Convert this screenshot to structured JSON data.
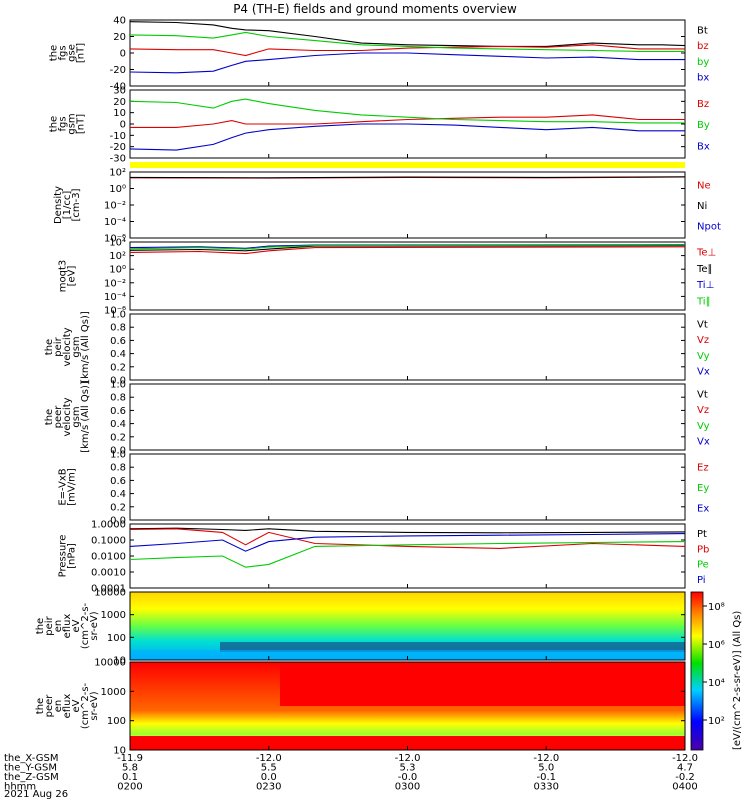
{
  "title": "P4 (TH-E) fields and ground moments overview",
  "colors": {
    "black": "#000000",
    "red": "#dd0000",
    "green": "#00cc00",
    "blue": "#0000cc",
    "yellow": "#ffff00"
  },
  "chart_data": [
    {
      "id": "fgs_gse",
      "type": "line",
      "ylabel_lines": [
        "the",
        "fgs",
        "gse",
        "[nT]"
      ],
      "ylim": [
        -40,
        40
      ],
      "yticks": [
        "40",
        "20",
        "0",
        "-20",
        "-40"
      ],
      "legend": [
        {
          "name": "Bt",
          "color": "black"
        },
        {
          "name": "bz",
          "color": "red"
        },
        {
          "name": "by",
          "color": "green"
        },
        {
          "name": "bx",
          "color": "blue"
        }
      ],
      "series": [
        {
          "name": "Bt",
          "color": "black",
          "x": [
            0,
            10,
            18,
            22,
            25,
            30,
            40,
            50,
            60,
            70,
            80,
            90,
            100,
            110,
            115,
            120
          ],
          "values": [
            38,
            37,
            34,
            30,
            28,
            27,
            20,
            12,
            10,
            9,
            8,
            8,
            12,
            10,
            10,
            9
          ]
        },
        {
          "name": "bz",
          "color": "red",
          "x": [
            0,
            10,
            18,
            22,
            25,
            30,
            40,
            50,
            60,
            70,
            80,
            90,
            100,
            110,
            115,
            120
          ],
          "values": [
            5,
            4,
            4,
            0,
            -3,
            5,
            3,
            3,
            6,
            7,
            8,
            7,
            10,
            5,
            5,
            5
          ]
        },
        {
          "name": "by",
          "color": "green",
          "x": [
            0,
            10,
            18,
            22,
            25,
            30,
            40,
            50,
            60,
            70,
            80,
            90,
            100,
            110,
            115,
            120
          ],
          "values": [
            22,
            21,
            18,
            22,
            25,
            20,
            15,
            10,
            8,
            6,
            5,
            4,
            3,
            2,
            2,
            2
          ]
        },
        {
          "name": "bx",
          "color": "blue",
          "x": [
            0,
            10,
            18,
            22,
            25,
            30,
            40,
            50,
            60,
            70,
            80,
            90,
            100,
            110,
            115,
            120
          ],
          "values": [
            -23,
            -24,
            -22,
            -15,
            -10,
            -8,
            -3,
            0,
            0,
            -2,
            -4,
            -6,
            -5,
            -8,
            -8,
            -8
          ]
        }
      ]
    },
    {
      "id": "fgs_gsm",
      "type": "line",
      "ylabel_lines": [
        "the",
        "fgs",
        "gsm",
        "[nT]"
      ],
      "ylim": [
        -30,
        30
      ],
      "yticks": [
        "30",
        "20",
        "10",
        "0",
        "-10",
        "-20",
        "-30"
      ],
      "legend": [
        {
          "name": "Bz",
          "color": "red"
        },
        {
          "name": "By",
          "color": "green"
        },
        {
          "name": "Bx",
          "color": "blue"
        }
      ],
      "series": [
        {
          "name": "Bz",
          "color": "red",
          "x": [
            0,
            10,
            18,
            22,
            25,
            30,
            40,
            50,
            60,
            70,
            80,
            90,
            100,
            110,
            120
          ],
          "values": [
            -3,
            -3,
            0,
            3,
            0,
            0,
            0,
            2,
            4,
            5,
            6,
            6,
            8,
            4,
            4
          ]
        },
        {
          "name": "By",
          "color": "green",
          "x": [
            0,
            10,
            18,
            22,
            25,
            30,
            40,
            50,
            60,
            70,
            80,
            90,
            100,
            110,
            120
          ],
          "values": [
            20,
            19,
            14,
            20,
            22,
            18,
            12,
            8,
            6,
            4,
            3,
            2,
            2,
            1,
            1
          ]
        },
        {
          "name": "Bx",
          "color": "blue",
          "x": [
            0,
            10,
            18,
            22,
            25,
            30,
            40,
            50,
            60,
            70,
            80,
            90,
            100,
            110,
            120
          ],
          "values": [
            -22,
            -23,
            -18,
            -12,
            -8,
            -5,
            -2,
            0,
            0,
            -1,
            -3,
            -5,
            -3,
            -6,
            -6
          ]
        }
      ]
    },
    {
      "id": "density",
      "type": "line",
      "scale": "log",
      "ylabel_lines": [
        "Density",
        "[1/cc]",
        "[cm-3]"
      ],
      "ylim": [
        1e-06,
        100.0
      ],
      "yticks": [
        "10²",
        "10⁰",
        "10⁻²",
        "10⁻⁴",
        "10⁻⁶"
      ],
      "legend": [
        {
          "name": "Ne",
          "color": "red"
        },
        {
          "name": "Ni",
          "color": "black"
        },
        {
          "name": "Npot",
          "color": "blue"
        }
      ],
      "series": [
        {
          "name": "Ne",
          "color": "red",
          "x": [
            0,
            30,
            60,
            90,
            120
          ],
          "values": [
            20,
            18,
            22,
            20,
            25
          ]
        },
        {
          "name": "Ni",
          "color": "black",
          "x": [
            0,
            30,
            60,
            90,
            120
          ],
          "values": [
            22,
            20,
            24,
            22,
            26
          ]
        }
      ]
    },
    {
      "id": "moqt3",
      "type": "line",
      "scale": "log",
      "ylabel_lines": [
        "moqt3",
        "[eV]"
      ],
      "ylim": [
        1e-06,
        10000.0
      ],
      "yticks": [
        "10⁴",
        "10²",
        "10⁰",
        "10⁻²",
        "10⁻⁴",
        "10⁻⁶"
      ],
      "legend": [
        {
          "name": "Te⊥",
          "color": "red"
        },
        {
          "name": "Te∥",
          "color": "black"
        },
        {
          "name": "Ti⊥",
          "color": "blue"
        },
        {
          "name": "Ti∥",
          "color": "green"
        }
      ],
      "series": [
        {
          "name": "Te⊥",
          "color": "red",
          "x": [
            0,
            15,
            25,
            30,
            40,
            120
          ],
          "values": [
            300,
            400,
            200,
            500,
            1500,
            2000
          ]
        },
        {
          "name": "Te∥",
          "color": "black",
          "x": [
            0,
            15,
            25,
            30,
            40,
            120
          ],
          "values": [
            600,
            800,
            500,
            900,
            2500,
            3000
          ]
        },
        {
          "name": "Ti⊥",
          "color": "blue",
          "x": [
            0,
            15,
            25,
            30,
            40,
            120
          ],
          "values": [
            1500,
            2000,
            1200,
            2500,
            3500,
            4000
          ]
        },
        {
          "name": "Ti∥",
          "color": "green",
          "x": [
            0,
            15,
            25,
            30,
            40,
            120
          ],
          "values": [
            1000,
            1500,
            900,
            1800,
            3000,
            3500
          ]
        }
      ]
    },
    {
      "id": "peir_velocity",
      "type": "line",
      "ylabel_lines": [
        "the",
        "peir",
        "velocity",
        "gsm",
        "[km/s (All Qs)]"
      ],
      "ylim": [
        0,
        1
      ],
      "yticks": [
        "1.0",
        "0.8",
        "0.6",
        "0.4",
        "0.2",
        "0.0"
      ],
      "legend": [
        {
          "name": "Vt",
          "color": "black"
        },
        {
          "name": "Vz",
          "color": "red"
        },
        {
          "name": "Vy",
          "color": "green"
        },
        {
          "name": "Vx",
          "color": "blue"
        }
      ],
      "series": []
    },
    {
      "id": "peer_velocity",
      "type": "line",
      "ylabel_lines": [
        "the",
        "peer",
        "velocity",
        "gsm",
        "[km/s (All Qs)]"
      ],
      "ylim": [
        0,
        1
      ],
      "yticks": [
        "1.0",
        "0.8",
        "0.6",
        "0.4",
        "0.2",
        "0.0"
      ],
      "legend": [
        {
          "name": "Vt",
          "color": "black"
        },
        {
          "name": "Vz",
          "color": "red"
        },
        {
          "name": "Vy",
          "color": "green"
        },
        {
          "name": "Vx",
          "color": "blue"
        }
      ],
      "series": []
    },
    {
      "id": "efield",
      "type": "line",
      "ylabel_lines": [
        "E=-VxB",
        "[mV/m]"
      ],
      "ylim": [
        0,
        1
      ],
      "yticks": [
        "1.0",
        "0.8",
        "0.6",
        "0.4",
        "0.2",
        "0.0"
      ],
      "legend": [
        {
          "name": "Ez",
          "color": "red"
        },
        {
          "name": "Ey",
          "color": "green"
        },
        {
          "name": "Ex",
          "color": "blue"
        }
      ],
      "series": []
    },
    {
      "id": "pressure",
      "type": "line",
      "scale": "log",
      "ylabel_lines": [
        "Pressure",
        "[nPa]"
      ],
      "ylim": [
        0.0001,
        1.0
      ],
      "yticks": [
        "1.0000",
        "0.1000",
        "0.0100",
        "0.0010",
        "0.0001"
      ],
      "legend": [
        {
          "name": "Pt",
          "color": "black"
        },
        {
          "name": "Pb",
          "color": "red"
        },
        {
          "name": "Pe",
          "color": "green"
        },
        {
          "name": "Pi",
          "color": "blue"
        }
      ],
      "series": [
        {
          "name": "Pt",
          "color": "black",
          "x": [
            0,
            10,
            20,
            25,
            30,
            40,
            60,
            80,
            100,
            120
          ],
          "values": [
            0.5,
            0.55,
            0.45,
            0.4,
            0.5,
            0.35,
            0.3,
            0.28,
            0.3,
            0.32
          ]
        },
        {
          "name": "Pb",
          "color": "red",
          "x": [
            0,
            10,
            20,
            25,
            30,
            40,
            60,
            80,
            100,
            120
          ],
          "values": [
            0.45,
            0.5,
            0.3,
            0.05,
            0.3,
            0.06,
            0.04,
            0.03,
            0.06,
            0.04
          ]
        },
        {
          "name": "Pe",
          "color": "green",
          "x": [
            0,
            10,
            20,
            25,
            30,
            40,
            60,
            80,
            100,
            120
          ],
          "values": [
            0.006,
            0.008,
            0.01,
            0.002,
            0.003,
            0.04,
            0.05,
            0.06,
            0.07,
            0.08
          ]
        },
        {
          "name": "Pi",
          "color": "blue",
          "x": [
            0,
            10,
            20,
            25,
            30,
            40,
            60,
            80,
            100,
            120
          ],
          "values": [
            0.04,
            0.06,
            0.1,
            0.02,
            0.08,
            0.15,
            0.18,
            0.2,
            0.22,
            0.25
          ]
        }
      ]
    },
    {
      "id": "peir_eflux",
      "type": "heatmap",
      "ylabel_lines": [
        "the",
        "peir",
        "en",
        "eflux",
        "eV",
        "(cm^2-s-",
        "sr-eV)"
      ],
      "ylim": [
        5,
        25000
      ],
      "yticks": [
        "10000",
        "1000",
        "100",
        "10"
      ]
    },
    {
      "id": "peer_eflux",
      "type": "heatmap",
      "ylabel_lines": [
        "the",
        "peer",
        "en",
        "eflux",
        "eV",
        "(cm^2-s-",
        "sr-eV)"
      ],
      "ylim": [
        5,
        25000
      ],
      "yticks": [
        "10000",
        "1000",
        "100",
        "10"
      ]
    }
  ],
  "colorbar": {
    "ticks": [
      "10⁸",
      "10⁶",
      "10⁴",
      "10²"
    ],
    "label": "[eV/(cm^2-s-sr-eV)] (All Qs)"
  },
  "x_axis": {
    "rows": [
      {
        "label": "the_X-GSM",
        "values": [
          "-11.9",
          "-12.0",
          "-12.0",
          "-12.0",
          "-12.0"
        ]
      },
      {
        "label": "the_Y-GSM",
        "values": [
          "5.8",
          "5.5",
          "5.3",
          "5.0",
          "4.7"
        ]
      },
      {
        "label": "the_Z-GSM",
        "values": [
          "0.1",
          "0.0",
          "-0.0",
          "-0.1",
          "-0.2"
        ]
      },
      {
        "label": "hhmm",
        "values": [
          "0200",
          "0230",
          "0300",
          "0330",
          "0400"
        ]
      }
    ],
    "date": "2021 Aug 26"
  }
}
